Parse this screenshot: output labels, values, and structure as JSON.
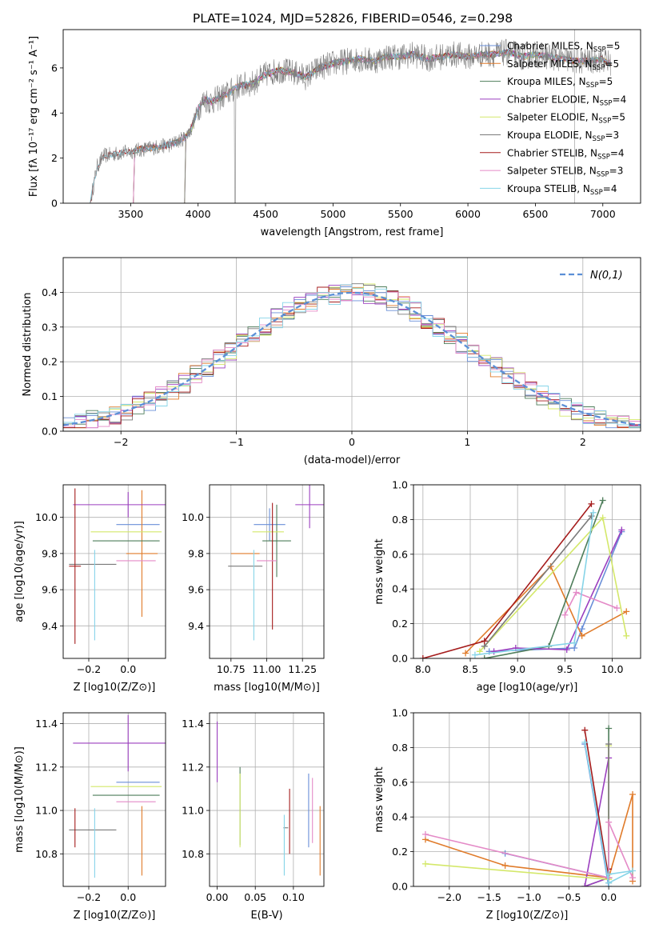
{
  "figure": {
    "title": "PLATE=1024, MJD=52826, FIBERID=0546, z=0.298"
  },
  "colors": [
    "#6a8fd8",
    "#e07b2a",
    "#4e7d5a",
    "#9b3fbf",
    "#d4e86a",
    "#7a7a7a",
    "#a51c1c",
    "#e48ac7",
    "#86d4e8"
  ],
  "chart_data": [
    {
      "id": "spectrum",
      "type": "line",
      "xlabel": "wavelength [Angstrom, rest frame]",
      "ylabel": "Flux [fλ 10⁻¹⁷ erg cm⁻² s⁻¹ A⁻¹]",
      "xlim": [
        3000,
        7280
      ],
      "ylim": [
        0,
        7.7
      ],
      "xticks": [
        3500,
        4000,
        4500,
        5000,
        5500,
        6000,
        6500,
        7000
      ],
      "yticks": [
        0,
        2,
        4,
        6
      ],
      "data": {
        "x": [
          3200,
          3250,
          3300,
          3400,
          3500,
          3600,
          3700,
          3800,
          3900,
          3950,
          4000,
          4050,
          4100,
          4200,
          4300,
          4400,
          4500,
          4600,
          4700,
          4800,
          4900,
          5000,
          5100,
          5200,
          5300,
          5400,
          5500,
          5600,
          5700,
          5800,
          5900,
          6000,
          6100,
          6200,
          6300,
          6400,
          6500,
          6600,
          6700,
          6800,
          6900,
          7000,
          7050
        ],
        "y": [
          0,
          1.6,
          2.1,
          2.2,
          2.3,
          2.4,
          2.5,
          2.6,
          2.9,
          3.3,
          4.2,
          4.6,
          4.5,
          4.8,
          5.2,
          5.3,
          5.7,
          5.9,
          5.8,
          5.6,
          6.0,
          6.2,
          6.3,
          6.4,
          6.3,
          6.5,
          6.5,
          6.6,
          6.4,
          6.5,
          6.6,
          6.5,
          6.6,
          6.6,
          6.7,
          6.5,
          6.6,
          6.5,
          6.4,
          6.3,
          6.3,
          6.4,
          6.2
        ]
      },
      "series": [
        {
          "name": "Chabrier MILES, N_SSP=5",
          "start": 3520
        },
        {
          "name": "Salpeter MILES, N_SSP=5",
          "start": 3520
        },
        {
          "name": "Kroupa MILES, N_SSP=5",
          "start": 3520
        },
        {
          "name": "Chabrier ELODIE, N_SSP=4",
          "start": 3900
        },
        {
          "name": "Salpeter ELODIE, N_SSP=5",
          "start": 3900
        },
        {
          "name": "Kroupa ELODIE, N_SSP=3",
          "start": 3900
        },
        {
          "name": "Chabrier STELIB, N_SSP=4",
          "start": 3200
        },
        {
          "name": "Salpeter STELIB, N_SSP=3",
          "start": 3520
        },
        {
          "name": "Kroupa STELIB, N_SSP=4",
          "start": 3200
        }
      ],
      "legend_position": "right"
    },
    {
      "id": "residuals",
      "type": "histogram",
      "xlabel": "(data-model)/error",
      "ylabel": "Normed distribution",
      "xlim": [
        -2.5,
        2.5
      ],
      "ylim": [
        0,
        0.5
      ],
      "xticks": [
        -2,
        -1,
        0,
        1,
        2
      ],
      "yticks": [
        0.0,
        0.1,
        0.2,
        0.3,
        0.4
      ],
      "reference_label": "N(0,1)",
      "legend_position": "top-right",
      "grid": true
    },
    {
      "id": "age_vs_Z",
      "type": "errorbar",
      "xlabel": "Z [log10(Z/Z⊙)]",
      "ylabel": "age  [log10(age/yr)]",
      "xlim": [
        -0.33,
        0.19
      ],
      "ylim": [
        9.22,
        10.18
      ],
      "xticks": [
        -0.2,
        0.0
      ],
      "yticks": [
        9.4,
        9.6,
        9.8,
        10.0
      ],
      "grid": true,
      "points": [
        {
          "x": 0.05,
          "y": 9.96,
          "xerr": 0.11,
          "yerr": 0.0
        },
        {
          "x": 0.07,
          "y": 9.8,
          "xerr": 0.08,
          "yerr": 0.35
        },
        {
          "x": -0.01,
          "y": 9.87,
          "xerr": 0.17,
          "yerr": 0.0
        },
        {
          "x": 0.0,
          "y": 10.07,
          "xerr": 0.28,
          "yerr": 0.07
        },
        {
          "x": -0.01,
          "y": 9.92,
          "xerr": 0.18,
          "yerr": 0.0
        },
        {
          "x": -0.18,
          "y": 9.74,
          "xerr": 0.12,
          "yerr": 0.0
        },
        {
          "x": -0.27,
          "y": 9.73,
          "xerr": 0.03,
          "yerr": 0.43
        },
        {
          "x": 0.04,
          "y": 9.76,
          "xerr": 0.1,
          "yerr": 0.0
        },
        {
          "x": -0.17,
          "y": 9.57,
          "xerr": 0.0,
          "yerr": 0.25
        }
      ]
    },
    {
      "id": "age_vs_mass",
      "type": "errorbar",
      "xlabel": "mass [log10(M/M⊙)]",
      "ylabel": "",
      "xlim": [
        10.6,
        11.4
      ],
      "ylim": [
        9.22,
        10.18
      ],
      "xticks": [
        10.75,
        11.0,
        11.25
      ],
      "yticks": [
        9.4,
        9.6,
        9.8,
        10.0
      ],
      "grid": true,
      "points": [
        {
          "x": 11.02,
          "y": 9.96,
          "xerr": 0.11,
          "yerr": 0.09
        },
        {
          "x": 10.85,
          "y": 9.8,
          "xerr": 0.1,
          "yerr": 0.0
        },
        {
          "x": 11.07,
          "y": 9.87,
          "xerr": 0.1,
          "yerr": 0.2
        },
        {
          "x": 11.3,
          "y": 10.07,
          "xerr": 0.1,
          "yerr": 0.13
        },
        {
          "x": 11.01,
          "y": 9.92,
          "xerr": 0.11,
          "yerr": 0.0
        },
        {
          "x": 10.85,
          "y": 9.73,
          "xerr": 0.12,
          "yerr": 0.0
        },
        {
          "x": 11.04,
          "y": 9.73,
          "xerr": 0.0,
          "yerr": 0.35
        },
        {
          "x": 11.0,
          "y": 9.76,
          "xerr": 0.07,
          "yerr": 0.0
        },
        {
          "x": 10.91,
          "y": 9.57,
          "xerr": 0.0,
          "yerr": 0.25
        }
      ]
    },
    {
      "id": "massweight_vs_age",
      "type": "line",
      "xlabel": "age  [log10(age/yr)]",
      "ylabel": "mass weight",
      "xlim": [
        7.9,
        10.3
      ],
      "ylim": [
        0.0,
        1.0
      ],
      "xticks": [
        8.0,
        8.5,
        9.0,
        9.5,
        10.0
      ],
      "yticks": [
        0.0,
        0.2,
        0.4,
        0.6,
        0.8,
        1.0
      ],
      "grid": true,
      "series": [
        {
          "x": [
            8.7,
            9.6,
            9.68,
            10.1
          ],
          "y": [
            0.04,
            0.06,
            0.17,
            0.73
          ]
        },
        {
          "x": [
            8.45,
            9.35,
            9.68,
            10.15
          ],
          "y": [
            0.03,
            0.53,
            0.13,
            0.27
          ]
        },
        {
          "x": [
            8.65,
            9.33,
            9.9
          ],
          "y": [
            0.0,
            0.07,
            0.91
          ]
        },
        {
          "x": [
            8.75,
            8.98,
            9.52,
            10.1
          ],
          "y": [
            0.04,
            0.06,
            0.05,
            0.74
          ]
        },
        {
          "x": [
            8.6,
            9.9,
            10.15
          ],
          "y": [
            0.04,
            0.81,
            0.13
          ]
        },
        {
          "x": [
            8.65,
            9.78
          ],
          "y": [
            0.07,
            0.82
          ]
        },
        {
          "x": [
            8.0,
            8.65,
            9.78
          ],
          "y": [
            0.0,
            0.1,
            0.89
          ]
        },
        {
          "x": [
            9.5,
            9.62,
            10.05
          ],
          "y": [
            0.25,
            0.38,
            0.29
          ]
        },
        {
          "x": [
            8.55,
            9.6,
            9.8
          ],
          "y": [
            0.02,
            0.09,
            0.84
          ]
        }
      ]
    },
    {
      "id": "mass_vs_Z",
      "type": "errorbar",
      "xlabel": "Z [log10(Z/Z⊙)]",
      "ylabel": "mass [log10(M/M⊙)]",
      "xlim": [
        -0.33,
        0.19
      ],
      "ylim": [
        10.65,
        11.45
      ],
      "xticks": [
        -0.2,
        0.0
      ],
      "yticks": [
        10.8,
        11.0,
        11.2,
        11.4
      ],
      "grid": true,
      "points": [
        {
          "x": 0.05,
          "y": 11.13,
          "xerr": 0.11,
          "yerr": 0.0
        },
        {
          "x": 0.07,
          "y": 10.86,
          "xerr": 0.0,
          "yerr": 0.16
        },
        {
          "x": -0.01,
          "y": 11.07,
          "xerr": 0.17,
          "yerr": 0.0
        },
        {
          "x": 0.0,
          "y": 11.31,
          "xerr": 0.28,
          "yerr": 0.13
        },
        {
          "x": -0.01,
          "y": 11.11,
          "xerr": 0.18,
          "yerr": 0.0
        },
        {
          "x": -0.18,
          "y": 10.91,
          "xerr": 0.12,
          "yerr": 0.0
        },
        {
          "x": -0.27,
          "y": 10.92,
          "xerr": 0.0,
          "yerr": 0.09
        },
        {
          "x": 0.04,
          "y": 11.04,
          "xerr": 0.1,
          "yerr": 0.0
        },
        {
          "x": -0.17,
          "y": 10.85,
          "xerr": 0.0,
          "yerr": 0.16
        }
      ]
    },
    {
      "id": "mass_vs_ebv",
      "type": "errorbar",
      "xlabel": "E(B-V)",
      "ylabel": "",
      "xlim": [
        -0.01,
        0.14
      ],
      "ylim": [
        10.65,
        11.45
      ],
      "xticks": [
        0.0,
        0.05,
        0.1
      ],
      "yticks": [
        10.8,
        11.0,
        11.2,
        11.4
      ],
      "grid": true,
      "points": [
        {
          "x": 0.12,
          "y": 11.0,
          "xerr": 0.0,
          "yerr": 0.17
        },
        {
          "x": 0.135,
          "y": 10.86,
          "xerr": 0.0,
          "yerr": 0.16
        },
        {
          "x": 0.03,
          "y": 11.02,
          "xerr": 0.0,
          "yerr": 0.18
        },
        {
          "x": 0.0,
          "y": 11.27,
          "xerr": 0.0,
          "yerr": 0.14
        },
        {
          "x": 0.03,
          "y": 11.0,
          "xerr": 0.0,
          "yerr": 0.17
        },
        {
          "x": 0.09,
          "y": 10.92,
          "xerr": 0.0,
          "yerr": 0.0
        },
        {
          "x": 0.095,
          "y": 10.95,
          "xerr": 0.0,
          "yerr": 0.15
        },
        {
          "x": 0.125,
          "y": 11.0,
          "xerr": 0.0,
          "yerr": 0.15
        },
        {
          "x": 0.088,
          "y": 10.84,
          "xerr": 0.0,
          "yerr": 0.14
        }
      ]
    },
    {
      "id": "massweight_vs_Z",
      "type": "line",
      "xlabel": "Z [log10(Z/Z⊙)]",
      "ylabel": "mass weight",
      "xlim": [
        -2.45,
        0.4
      ],
      "ylim": [
        0.0,
        1.0
      ],
      "xticks": [
        -2.0,
        -1.5,
        -1.0,
        -0.5,
        0.0
      ],
      "yticks": [
        0.0,
        0.2,
        0.4,
        0.6,
        0.8,
        1.0
      ],
      "grid": true,
      "series": [
        {
          "x": [
            -1.3,
            0.0,
            -0.3,
            0.0
          ],
          "y": [
            0.19,
            0.05,
            0.82,
            0.0
          ]
        },
        {
          "x": [
            -2.3,
            -1.3,
            0.0,
            0.3,
            0.3
          ],
          "y": [
            0.27,
            0.12,
            0.05,
            0.53,
            0.03
          ]
        },
        {
          "x": [
            -0.3,
            0.0,
            0.0
          ],
          "y": [
            0.0,
            0.05,
            0.91
          ]
        },
        {
          "x": [
            0.0,
            -0.3,
            0.0
          ],
          "y": [
            0.74,
            0.0,
            0.05
          ]
        },
        {
          "x": [
            -2.3,
            0.0,
            0.0
          ],
          "y": [
            0.13,
            0.04,
            0.81
          ]
        },
        {
          "x": [
            0.0,
            0.0
          ],
          "y": [
            0.02,
            0.82
          ]
        },
        {
          "x": [
            -0.3,
            0.0,
            0.0
          ],
          "y": [
            0.9,
            0.05,
            0.1
          ]
        },
        {
          "x": [
            -2.3,
            0.0,
            0.0,
            0.3
          ],
          "y": [
            0.3,
            0.05,
            0.37,
            0.05
          ]
        },
        {
          "x": [
            -0.3,
            0.0,
            0.3,
            0.0
          ],
          "y": [
            0.83,
            0.02,
            0.09,
            0.07
          ]
        }
      ]
    }
  ]
}
